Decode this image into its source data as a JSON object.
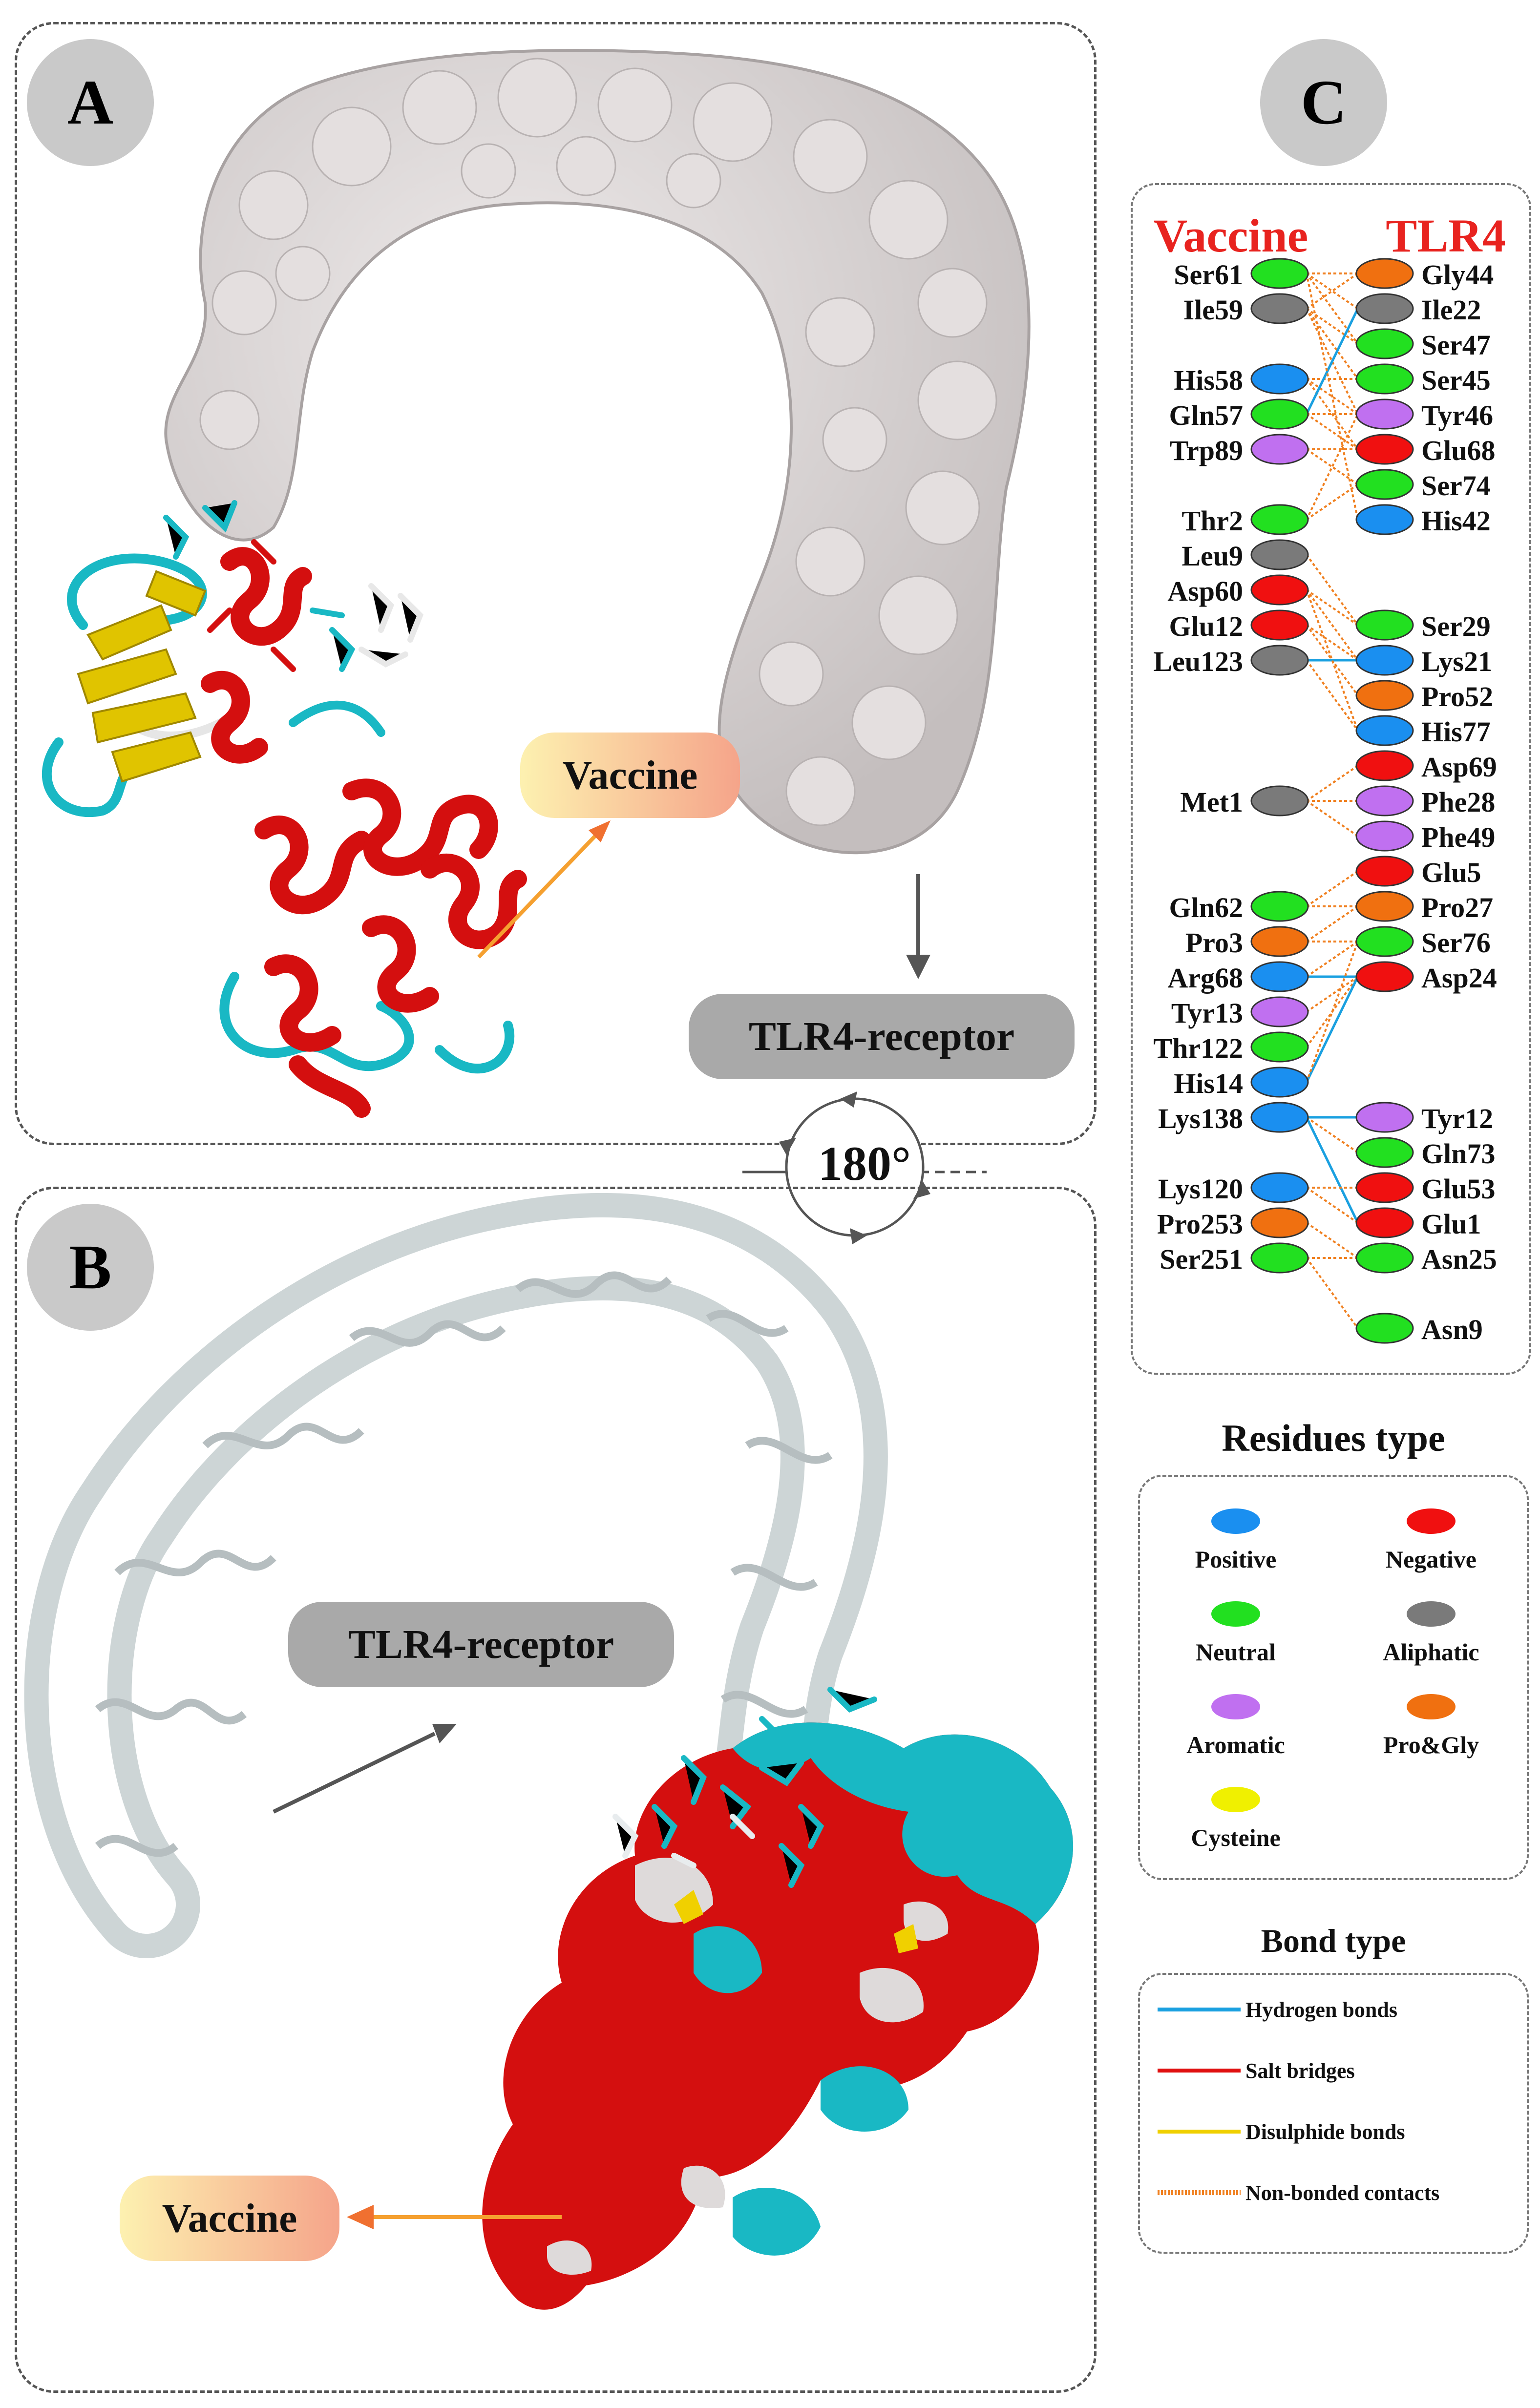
{
  "panels": {
    "A": {
      "label": "A"
    },
    "B": {
      "label": "B"
    },
    "C": {
      "label": "C"
    }
  },
  "labels": {
    "vaccine": "Vaccine",
    "receptor": "TLR4-receptor",
    "rotation": "180°"
  },
  "interaction": {
    "vaccine_header": "Vaccine",
    "tlr4_header": "TLR4",
    "header_color": "#e8231f",
    "vaccine_residues": [
      {
        "name": "Ser61",
        "type": "neutral"
      },
      {
        "name": "Ile59",
        "type": "aliphatic"
      },
      {
        "name": "His58",
        "type": "positive"
      },
      {
        "name": "Gln57",
        "type": "neutral"
      },
      {
        "name": "Trp89",
        "type": "aromatic"
      },
      {
        "name": "Thr2",
        "type": "neutral"
      },
      {
        "name": "Leu9",
        "type": "aliphatic"
      },
      {
        "name": "Asp60",
        "type": "negative"
      },
      {
        "name": "Glu12",
        "type": "negative"
      },
      {
        "name": "Leu123",
        "type": "aliphatic"
      },
      {
        "name": "Met1",
        "type": "aliphatic"
      },
      {
        "name": "Gln62",
        "type": "neutral"
      },
      {
        "name": "Pro3",
        "type": "progly"
      },
      {
        "name": "Arg68",
        "type": "positive"
      },
      {
        "name": "Tyr13",
        "type": "aromatic"
      },
      {
        "name": "Thr122",
        "type": "neutral"
      },
      {
        "name": "His14",
        "type": "positive"
      },
      {
        "name": "Lys138",
        "type": "positive"
      },
      {
        "name": "Lys120",
        "type": "positive"
      },
      {
        "name": "Pro253",
        "type": "progly"
      },
      {
        "name": "Ser251",
        "type": "neutral"
      }
    ],
    "tlr4_residues": [
      {
        "name": "Gly44",
        "type": "progly"
      },
      {
        "name": "Ile22",
        "type": "aliphatic"
      },
      {
        "name": "Ser47",
        "type": "neutral"
      },
      {
        "name": "Ser45",
        "type": "neutral"
      },
      {
        "name": "Tyr46",
        "type": "aromatic"
      },
      {
        "name": "Glu68",
        "type": "negative"
      },
      {
        "name": "Ser74",
        "type": "neutral"
      },
      {
        "name": "His42",
        "type": "positive"
      },
      {
        "name": "Ser29",
        "type": "neutral"
      },
      {
        "name": "Lys21",
        "type": "positive"
      },
      {
        "name": "Pro52",
        "type": "progly"
      },
      {
        "name": "His77",
        "type": "positive"
      },
      {
        "name": "Asp69",
        "type": "negative"
      },
      {
        "name": "Phe28",
        "type": "aromatic"
      },
      {
        "name": "Phe49",
        "type": "aromatic"
      },
      {
        "name": "Glu5",
        "type": "negative"
      },
      {
        "name": "Pro27",
        "type": "progly"
      },
      {
        "name": "Ser76",
        "type": "neutral"
      },
      {
        "name": "Asp24",
        "type": "negative"
      },
      {
        "name": "Tyr12",
        "type": "aromatic"
      },
      {
        "name": "Gln73",
        "type": "neutral"
      },
      {
        "name": "Glu53",
        "type": "negative"
      },
      {
        "name": "Glu1",
        "type": "negative"
      },
      {
        "name": "Asn25",
        "type": "neutral"
      },
      {
        "name": "Asn9",
        "type": "neutral"
      }
    ]
  },
  "residue_legend": {
    "title": "Residues type",
    "items": [
      {
        "key": "positive",
        "label": "Positive",
        "color": "#1a8ff0"
      },
      {
        "key": "negative",
        "label": "Negative",
        "color": "#f01010"
      },
      {
        "key": "neutral",
        "label": "Neutral",
        "color": "#22e020"
      },
      {
        "key": "aliphatic",
        "label": "Aliphatic",
        "color": "#7a7a7a"
      },
      {
        "key": "aromatic",
        "label": "Aromatic",
        "color": "#c070f0"
      },
      {
        "key": "progly",
        "label": "Pro&Gly",
        "color": "#f07010"
      },
      {
        "key": "cysteine",
        "label": "Cysteine",
        "color": "#f0f000"
      }
    ]
  },
  "bond_legend": {
    "title": "Bond type",
    "items": [
      {
        "label": "Hydrogen bonds",
        "color": "#1aa0e0"
      },
      {
        "label": "Salt bridges",
        "color": "#e01010"
      },
      {
        "label": "Disulphide bonds",
        "color": "#f0d000"
      },
      {
        "label": "Non-bonded contacts",
        "color": "#f08020"
      }
    ]
  },
  "colors": {
    "surface": "#d8d4d4",
    "helix": "#d40f0f",
    "sheet": "#e0c400",
    "coil": "#19b8c4",
    "ribbon": "#c8d0d2",
    "vaccine_pill_start": "#fdf1b0",
    "vaccine_pill_end": "#f5a48a",
    "receptor_pill": "#a9a9a9"
  }
}
